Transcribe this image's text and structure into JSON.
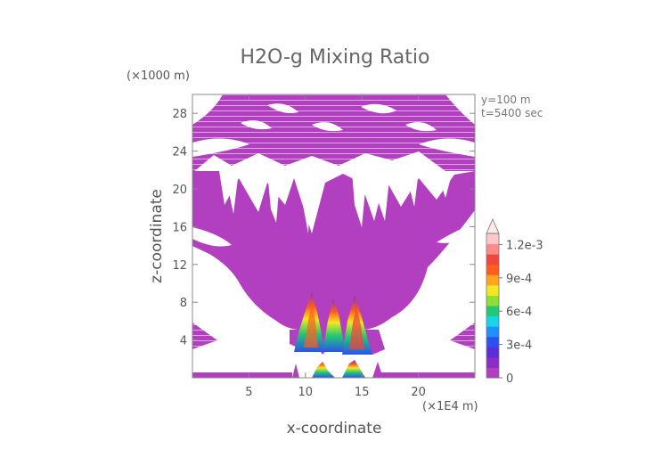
{
  "chart_data": {
    "type": "heatmap",
    "title": "H2O-g Mixing Ratio",
    "xlabel": "x-coordinate",
    "ylabel": "z-coordinate",
    "x_units": "(×1E4 m)",
    "y_units": "(×1000 m)",
    "annotations": [
      "y=100 m",
      "t=5400 sec"
    ],
    "xlim": [
      0,
      25
    ],
    "ylim": [
      0,
      30
    ],
    "x_ticks": [
      5,
      10,
      15,
      20
    ],
    "y_ticks": [
      4,
      8,
      12,
      16,
      20,
      24,
      28
    ],
    "grid": false,
    "colorbar": {
      "placement": "right",
      "range": [
        0,
        0.0013
      ],
      "ticks": [
        "0",
        "3e-4",
        "6e-4",
        "9e-4",
        "1.2e-3"
      ],
      "tick_values": [
        0,
        0.0003,
        0.0006,
        0.0009,
        0.0012
      ],
      "colors": [
        "#b23fbf",
        "#8a2ec6",
        "#5a2fd8",
        "#2d50f0",
        "#1e90ff",
        "#15d6e8",
        "#22c872",
        "#8fe034",
        "#f2e820",
        "#ffa51e",
        "#ff5e1e",
        "#f0463c",
        "#ff8a8a",
        "#ffc8c8"
      ],
      "extend": "max"
    },
    "fields": [
      {
        "name": "upper banded layer",
        "x": [
          0,
          25
        ],
        "z": [
          22,
          30
        ],
        "value": 2e-05
      },
      {
        "name": "main moist body",
        "x": [
          4,
          22
        ],
        "z": [
          6,
          22
        ],
        "value": 2e-05
      },
      {
        "name": "convective core left",
        "x": [
          9.5,
          11.2
        ],
        "z": [
          2.5,
          7
        ],
        "value": 0.0008
      },
      {
        "name": "convective core right",
        "x": [
          12.5,
          14.2
        ],
        "z": [
          3,
          7.5
        ],
        "value": 0.0011
      },
      {
        "name": "surface layer",
        "x": [
          0,
          25
        ],
        "z": [
          0,
          0.6
        ],
        "value": 0.0002
      },
      {
        "name": "surface peaks",
        "x": [
          10.5,
          14
        ],
        "z": [
          0.5,
          2
        ],
        "value": 0.0009
      },
      {
        "name": "edge wedge left",
        "x": [
          0,
          2
        ],
        "z": [
          3,
          5
        ],
        "value": 0.0002
      },
      {
        "name": "edge wedge right",
        "x": [
          23,
          25
        ],
        "z": [
          3,
          5
        ],
        "value": 0.0002
      }
    ]
  }
}
